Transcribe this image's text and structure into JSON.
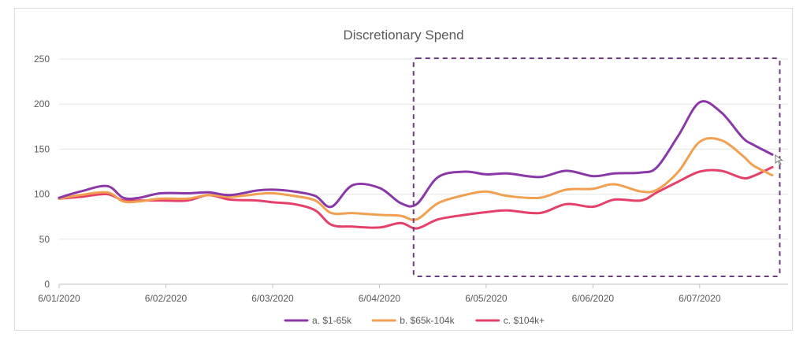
{
  "chart_data": {
    "type": "line",
    "title": "Discretionary Spend",
    "xlabel": "",
    "ylabel": "",
    "ylim": [
      0,
      250
    ],
    "yticks": [
      0,
      50,
      100,
      150,
      200,
      250
    ],
    "x_ticks": [
      "6/01/2020",
      "6/02/2020",
      "6/03/2020",
      "6/04/2020",
      "6/05/2020",
      "6/06/2020",
      "6/07/2020"
    ],
    "x_range": [
      0,
      6.7
    ],
    "grid": true,
    "legend": "bottom",
    "highlight_region": {
      "x_start": 3.32,
      "x_end": 6.75,
      "style": "dashed",
      "color": "#6b3d7a"
    },
    "x": [
      0,
      0.2,
      0.45,
      0.6,
      0.75,
      0.95,
      1.2,
      1.4,
      1.6,
      1.85,
      2.0,
      2.2,
      2.4,
      2.55,
      2.75,
      3.0,
      3.2,
      3.35,
      3.55,
      3.8,
      4.0,
      4.2,
      4.5,
      4.75,
      5.0,
      5.2,
      5.45,
      5.6,
      5.8,
      6.0,
      6.2,
      6.4,
      6.5,
      6.68
    ],
    "series": [
      {
        "name": "a. $1-65k",
        "color": "#8a38a8",
        "values": [
          96,
          103,
          109,
          96,
          96,
          101,
          101,
          102,
          99,
          104,
          105,
          103,
          98,
          86,
          110,
          107,
          90,
          89,
          119,
          125,
          122,
          123,
          119,
          126,
          120,
          123,
          124,
          130,
          165,
          202,
          191,
          163,
          155,
          144
        ]
      },
      {
        "name": "b. $65k-104k",
        "color": "#f0a050",
        "values": [
          95,
          99,
          102,
          92,
          92,
          95,
          95,
          99,
          97,
          100,
          101,
          98,
          93,
          79,
          79,
          77,
          76,
          72,
          90,
          99,
          103,
          98,
          96,
          105,
          106,
          111,
          103,
          105,
          125,
          158,
          160,
          143,
          132,
          121
        ]
      },
      {
        "name": "c. $104k+",
        "color": "#e5406a",
        "values": [
          95,
          97,
          100,
          93,
          93,
          93,
          93,
          99,
          94,
          93,
          91,
          89,
          82,
          66,
          64,
          63,
          68,
          62,
          72,
          77,
          80,
          82,
          79,
          89,
          86,
          94,
          93,
          102,
          114,
          125,
          126,
          118,
          120,
          130
        ]
      }
    ]
  }
}
